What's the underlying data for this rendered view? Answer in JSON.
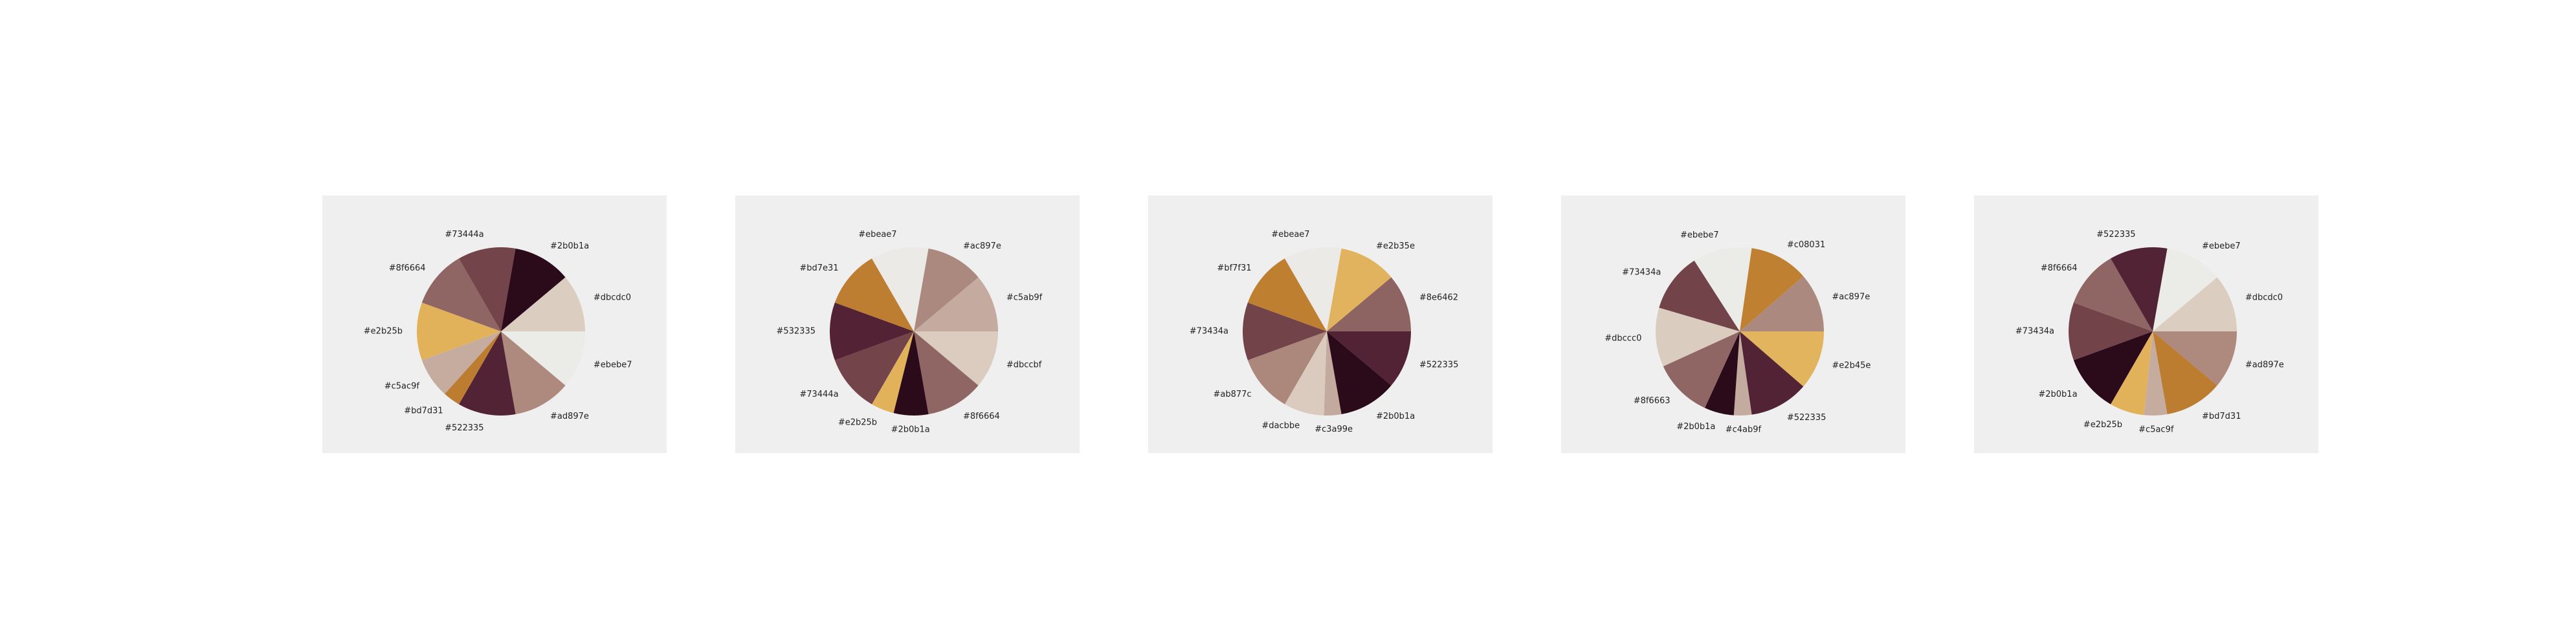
{
  "chart_data": [
    {
      "type": "pie",
      "slices": [
        {
          "label": "#ebebe7",
          "color": "#ebebe7",
          "value": 1
        },
        {
          "label": "#ad897e",
          "color": "#ad897e",
          "value": 1
        },
        {
          "label": "#522335",
          "color": "#522335",
          "value": 1
        },
        {
          "label": "#bd7d31",
          "color": "#bd7d31",
          "value": 0.3
        },
        {
          "label": "#c5ac9f",
          "color": "#c5ac9f",
          "value": 0.7
        },
        {
          "label": "#e2b25b",
          "color": "#e2b25b",
          "value": 1
        },
        {
          "label": "#8f6664",
          "color": "#8f6664",
          "value": 1
        },
        {
          "label": "#73444a",
          "color": "#73444a",
          "value": 1
        },
        {
          "label": "#2b0b1a",
          "color": "#2b0b1a",
          "value": 1
        },
        {
          "label": "#dbcdc0",
          "color": "#dbcdc0",
          "value": 1
        }
      ]
    },
    {
      "type": "pie",
      "slices": [
        {
          "label": "#dbccbf",
          "color": "#dbccbf",
          "value": 1
        },
        {
          "label": "#8f6664",
          "color": "#8f6664",
          "value": 1
        },
        {
          "label": "#2b0b1a",
          "color": "#2b0b1a",
          "value": 0.6
        },
        {
          "label": "#e2b25b",
          "color": "#e2b25b",
          "value": 0.4
        },
        {
          "label": "#73444a",
          "color": "#73444a",
          "value": 1
        },
        {
          "label": "#532335",
          "color": "#532335",
          "value": 1
        },
        {
          "label": "#bd7e31",
          "color": "#bd7e31",
          "value": 1
        },
        {
          "label": "#ebeae7",
          "color": "#ebeae7",
          "value": 1
        },
        {
          "label": "#ac897e",
          "color": "#ac897e",
          "value": 1
        },
        {
          "label": "#c5ab9f",
          "color": "#c5ab9f",
          "value": 1
        }
      ]
    },
    {
      "type": "pie",
      "slices": [
        {
          "label": "#522335",
          "color": "#522335",
          "value": 1
        },
        {
          "label": "#2b0b1a",
          "color": "#2b0b1a",
          "value": 1
        },
        {
          "label": "#c3a99e",
          "color": "#c3a99e",
          "value": 0.3
        },
        {
          "label": "#dacbbe",
          "color": "#dacbbe",
          "value": 0.7
        },
        {
          "label": "#ab877c",
          "color": "#ab877c",
          "value": 1
        },
        {
          "label": "#73434a",
          "color": "#73434a",
          "value": 1
        },
        {
          "label": "#bf7f31",
          "color": "#bf7f31",
          "value": 1
        },
        {
          "label": "#ebeae7",
          "color": "#ebeae7",
          "value": 1
        },
        {
          "label": "#e2b35e",
          "color": "#e2b35e",
          "value": 1
        },
        {
          "label": "#8e6462",
          "color": "#8e6462",
          "value": 1
        }
      ]
    },
    {
      "type": "pie",
      "slices": [
        {
          "label": "#e2b45e",
          "color": "#e2b45e",
          "value": 1
        },
        {
          "label": "#522335",
          "color": "#522335",
          "value": 1
        },
        {
          "label": "#c4ab9f",
          "color": "#c4ab9f",
          "value": 0.3
        },
        {
          "label": "#2b0b1a",
          "color": "#2b0b1a",
          "value": 0.5
        },
        {
          "label": "#8f6663",
          "color": "#8f6663",
          "value": 1
        },
        {
          "label": "#dbccc0",
          "color": "#dbccc0",
          "value": 1
        },
        {
          "label": "#73434a",
          "color": "#73434a",
          "value": 1
        },
        {
          "label": "#ebebe7",
          "color": "#ebebe7",
          "value": 1
        },
        {
          "label": "#c08031",
          "color": "#c08031",
          "value": 1
        },
        {
          "label": "#ac897e",
          "color": "#ac897e",
          "value": 1
        }
      ]
    },
    {
      "type": "pie",
      "slices": [
        {
          "label": "#ad897e",
          "color": "#ad897e",
          "value": 1
        },
        {
          "label": "#bd7d31",
          "color": "#bd7d31",
          "value": 1
        },
        {
          "label": "#c5ac9f",
          "color": "#c5ac9f",
          "value": 0.4
        },
        {
          "label": "#e2b25b",
          "color": "#e2b25b",
          "value": 0.6
        },
        {
          "label": "#2b0b1a",
          "color": "#2b0b1a",
          "value": 1
        },
        {
          "label": "#73434a",
          "color": "#73434a",
          "value": 1
        },
        {
          "label": "#8f6664",
          "color": "#8f6664",
          "value": 1
        },
        {
          "label": "#522335",
          "color": "#522335",
          "value": 1
        },
        {
          "label": "#ebebe7",
          "color": "#ebebe7",
          "value": 1
        },
        {
          "label": "#dbcdc0",
          "color": "#dbcdc0",
          "value": 1
        }
      ]
    }
  ]
}
